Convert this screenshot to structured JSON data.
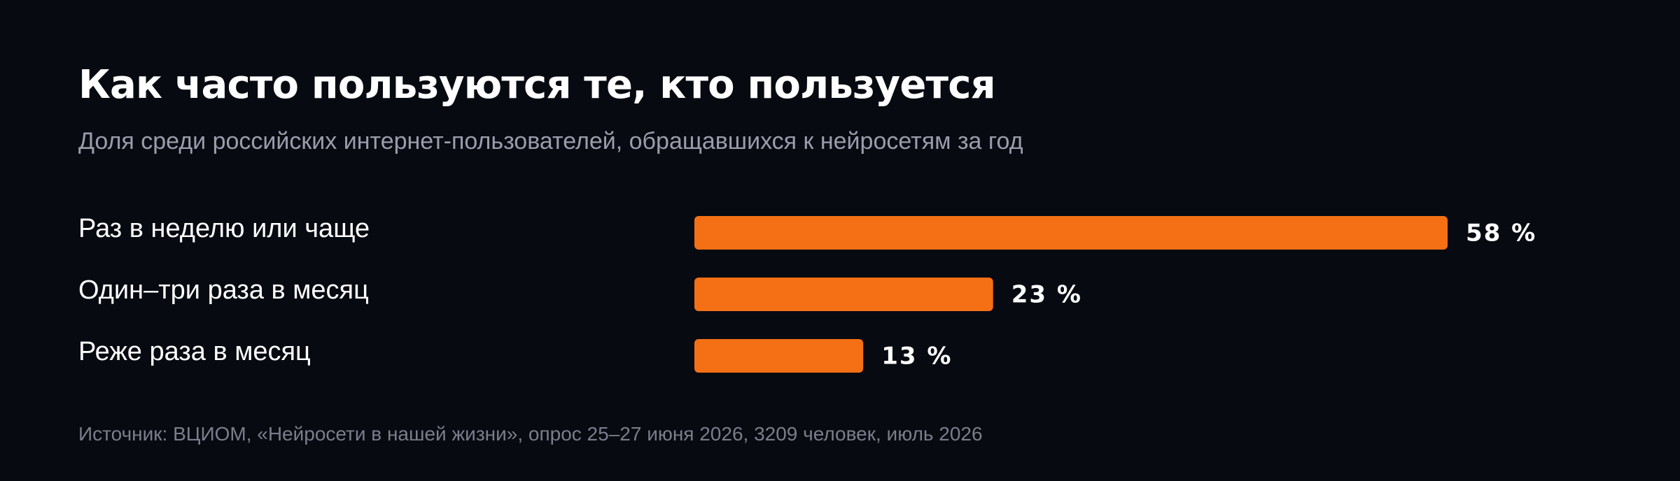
{
  "header": {
    "title": "Как часто пользуются те, кто пользуется",
    "subtitle": "Доля среди российских интернет-пользователей, обращавшихся к нейросетям за год"
  },
  "footer": {
    "source": "Источник: ВЦИОМ, «Нейросети в нашей жизни», опрос 25–27 июня 2026, 3209 человек, июль 2026"
  },
  "colors": {
    "background": "#080a12",
    "bar": "#f57015",
    "text": "#ffffff",
    "muted": "#9a9dab"
  },
  "chart_data": {
    "type": "bar",
    "orientation": "horizontal",
    "title": "Как часто пользуются те, кто пользуется",
    "subtitle": "Доля среди российских интернет-пользователей, обращавшихся к нейросетям за год",
    "categories": [
      "Раз в неделю или чаще",
      "Один–три раза в месяц",
      "Реже раза в месяц"
    ],
    "values": [
      58,
      23,
      13
    ],
    "value_labels": [
      "58 %",
      "23 %",
      "13 %"
    ],
    "unit": "%",
    "xlim": [
      0,
      58
    ],
    "grid": false,
    "legend": "none"
  }
}
